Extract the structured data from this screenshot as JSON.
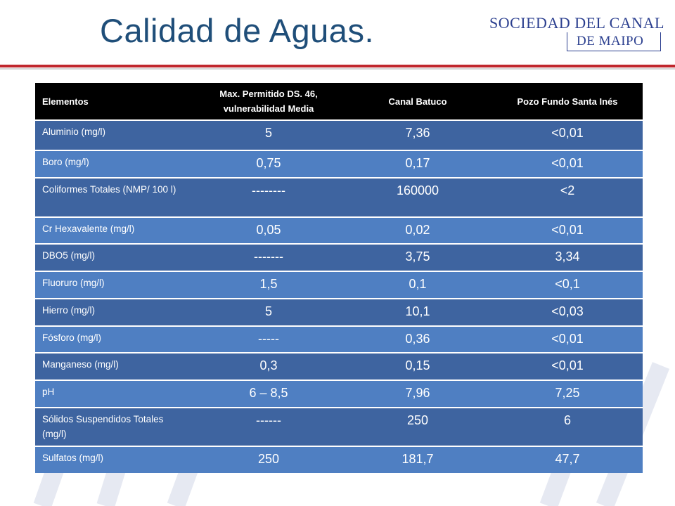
{
  "slide": {
    "title": "Calidad de Aguas.",
    "logo": {
      "line1": "SOCIEDAD DEL CANAL",
      "line2": "DE MAIPO"
    }
  },
  "table": {
    "headers": [
      "Elementos",
      "Max. Permitido DS. 46, vulnerabilidad Media",
      "Canal Batuco",
      "Pozo Fundo Santa Inés"
    ],
    "rows": [
      [
        "Aluminio (mg/l)",
        "5",
        "7,36",
        "<0,01"
      ],
      [
        "Boro (mg/l)",
        "0,75",
        "0,17",
        "<0,01"
      ],
      [
        "Coliformes Totales (NMP/ 100 l)",
        "--------",
        "160000",
        "<2"
      ],
      [
        "Cr Hexavalente (mg/l)",
        "0,05",
        "0,02",
        "<0,01"
      ],
      [
        "DBO5 (mg/l)",
        "-------",
        "3,75",
        "3,34"
      ],
      [
        "Fluoruro (mg/l)",
        "1,5",
        "0,1",
        "<0,1"
      ],
      [
        "Hierro (mg/l)",
        "5",
        "10,1",
        "<0,03"
      ],
      [
        "Fósforo (mg/l)",
        "-----",
        "0,36",
        "<0,01"
      ],
      [
        "Manganeso (mg/l)",
        "0,3",
        "0,15",
        "<0,01"
      ],
      [
        "pH",
        "6 – 8,5",
        "7,96",
        "7,25"
      ],
      [
        "Sólidos Suspendidos Totales (mg/l)",
        "------",
        "250",
        "6"
      ],
      [
        "Sulfatos (mg/l)",
        "250",
        "181,7",
        "47,7"
      ]
    ]
  },
  "colors": {
    "title": "#1f4e79",
    "header_bg": "#000000",
    "row_dark": "#3e64a0",
    "row_light": "#4f7fc2",
    "rule_red": "#c0272d",
    "logo": "#2b3f8f"
  }
}
